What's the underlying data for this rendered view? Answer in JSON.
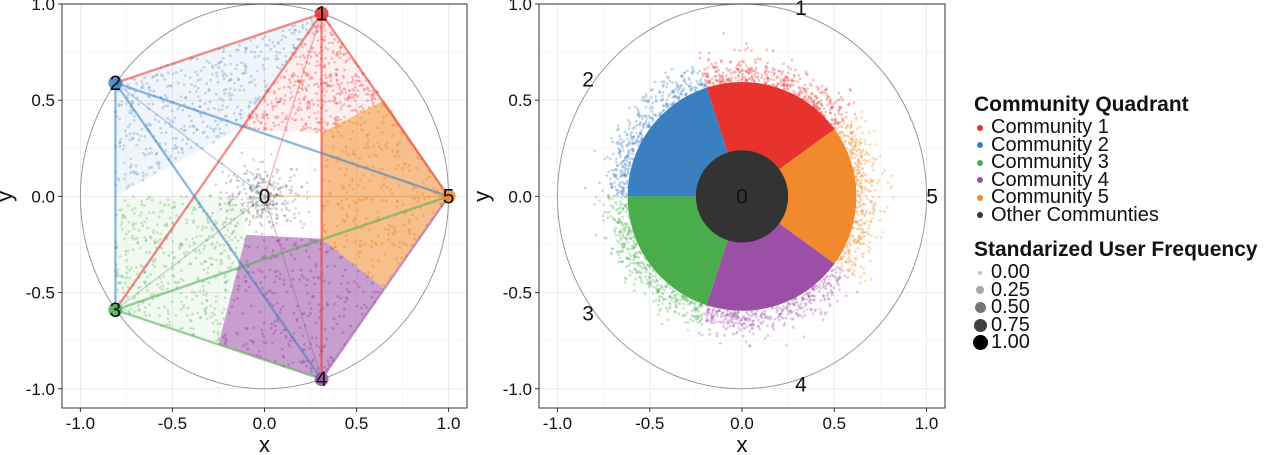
{
  "chart_data": [
    {
      "type": "scatter",
      "xlabel": "x",
      "ylabel": "y",
      "xlim": [
        -1.1,
        1.1
      ],
      "ylim": [
        -1.1,
        1.0
      ],
      "xticks": [
        "-1.0",
        "-0.5",
        "0.0",
        "0.5",
        "1.0"
      ],
      "yticks": [
        "-1.0",
        "-0.5",
        "0.0",
        "0.5",
        "1.0"
      ],
      "grid": true,
      "unit_circle": true,
      "vertices": [
        {
          "label": "1",
          "x": 0.31,
          "y": 0.95
        },
        {
          "label": "2",
          "x": -0.81,
          "y": 0.59
        },
        {
          "label": "3",
          "x": -0.81,
          "y": -0.59
        },
        {
          "label": "4",
          "x": 0.31,
          "y": -0.95
        },
        {
          "label": "5",
          "x": 1.0,
          "y": 0.0
        }
      ],
      "center_label": {
        "label": "0",
        "x": 0.0,
        "y": 0.0
      },
      "regions": [
        {
          "community": "Community 1",
          "polygon": [
            [
              0.31,
              0.95
            ],
            [
              -0.14,
              0.35
            ],
            [
              0.31,
              0.33
            ],
            [
              0.65,
              0.5
            ]
          ]
        },
        {
          "community": "Community 2",
          "polygon": [
            [
              -0.81,
              0.59
            ],
            [
              0.31,
              0.95
            ],
            [
              -0.14,
              0.35
            ],
            [
              -0.81,
              0.0
            ]
          ]
        },
        {
          "community": "Community 3",
          "polygon": [
            [
              -0.81,
              0.0
            ],
            [
              -0.14,
              0.0
            ],
            [
              -0.1,
              -0.2
            ],
            [
              -0.25,
              -0.77
            ],
            [
              -0.81,
              -0.59
            ]
          ]
        },
        {
          "community": "Community 4",
          "polygon": [
            [
              -0.25,
              -0.77
            ],
            [
              0.31,
              -0.95
            ],
            [
              0.65,
              -0.48
            ],
            [
              0.31,
              -0.22
            ],
            [
              -0.1,
              -0.2
            ]
          ]
        },
        {
          "community": "Community 5",
          "polygon": [
            [
              1.0,
              0.0
            ],
            [
              0.65,
              0.5
            ],
            [
              0.31,
              0.33
            ],
            [
              0.31,
              -0.22
            ],
            [
              0.65,
              -0.48
            ]
          ]
        }
      ]
    },
    {
      "type": "scatter",
      "xlabel": "x",
      "ylabel": "y",
      "xlim": [
        -1.1,
        1.1
      ],
      "ylim": [
        -1.1,
        1.0
      ],
      "xticks": [
        "-1.0",
        "-0.5",
        "0.0",
        "0.5",
        "1.0"
      ],
      "yticks": [
        "-1.0",
        "-0.5",
        "0.0",
        "0.5",
        "1.0"
      ],
      "grid": true,
      "unit_circle": true,
      "outer_labels": [
        {
          "label": "1",
          "x": 0.31,
          "y": 0.95
        },
        {
          "label": "2",
          "x": -0.81,
          "y": 0.59
        },
        {
          "label": "3",
          "x": -0.81,
          "y": -0.59
        },
        {
          "label": "4",
          "x": 0.31,
          "y": -0.95
        },
        {
          "label": "5",
          "x": 1.0,
          "y": 0.0
        }
      ],
      "center_label": {
        "label": "0",
        "x": 0.0,
        "y": 0.0
      },
      "inner_disc_radius": 0.25,
      "wedge_radius": 0.62,
      "wedges": [
        {
          "community": "Community 1",
          "start_deg": 36,
          "end_deg": 108
        },
        {
          "community": "Community 2",
          "start_deg": 108,
          "end_deg": 180
        },
        {
          "community": "Community 3",
          "start_deg": 180,
          "end_deg": 252
        },
        {
          "community": "Community 4",
          "start_deg": 252,
          "end_deg": 324
        },
        {
          "community": "Community 5",
          "start_deg": 324,
          "end_deg": 396
        }
      ]
    }
  ],
  "legend": {
    "color_title": "Community Quadrant",
    "items": [
      {
        "label": "Community 1",
        "color": "#e8322d"
      },
      {
        "label": "Community 2",
        "color": "#3a7fc0"
      },
      {
        "label": "Community 3",
        "color": "#4aad4c"
      },
      {
        "label": "Community 4",
        "color": "#9b4fa6"
      },
      {
        "label": "Community 5",
        "color": "#f08a2c"
      },
      {
        "label": "Other Communties",
        "color": "#333333"
      }
    ],
    "size_title": "Standarized User Frequency",
    "sizes": [
      "0.00",
      "0.25",
      "0.50",
      "0.75",
      "1.00"
    ]
  }
}
